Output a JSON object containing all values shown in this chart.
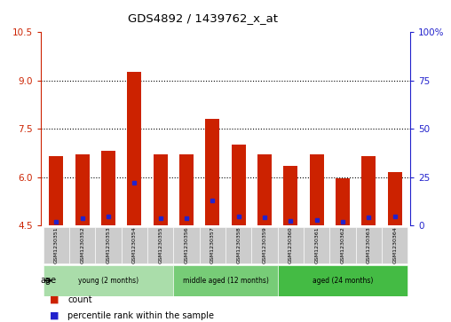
{
  "title": "GDS4892 / 1439762_x_at",
  "samples": [
    "GSM1230351",
    "GSM1230352",
    "GSM1230353",
    "GSM1230354",
    "GSM1230355",
    "GSM1230356",
    "GSM1230357",
    "GSM1230358",
    "GSM1230359",
    "GSM1230360",
    "GSM1230361",
    "GSM1230362",
    "GSM1230363",
    "GSM1230364"
  ],
  "count_values": [
    6.65,
    6.72,
    6.83,
    9.28,
    6.72,
    6.72,
    7.82,
    7.0,
    6.72,
    6.35,
    6.72,
    5.95,
    6.65,
    6.15
  ],
  "percentile_values": [
    2.0,
    3.5,
    4.5,
    22.0,
    3.5,
    3.5,
    13.0,
    4.5,
    4.0,
    2.5,
    3.0,
    2.0,
    4.0,
    4.5
  ],
  "y_min": 4.5,
  "y_max": 10.5,
  "y_ticks": [
    4.5,
    6.0,
    7.5,
    9.0,
    10.5
  ],
  "y2_ticks": [
    0,
    25,
    50,
    75,
    100
  ],
  "y2_tick_labels": [
    "0",
    "25",
    "50",
    "75",
    "100%"
  ],
  "bar_color": "#cc2200",
  "dot_color": "#2222cc",
  "bar_width": 0.55,
  "group_data": [
    {
      "start": 0,
      "end": 4,
      "color": "#aaddaa",
      "label": "young (2 months)"
    },
    {
      "start": 5,
      "end": 8,
      "color": "#77cc77",
      "label": "middle aged (12 months)"
    },
    {
      "start": 9,
      "end": 13,
      "color": "#44bb44",
      "label": "aged (24 months)"
    }
  ],
  "left_axis_color": "#cc2200",
  "right_axis_color": "#2222cc",
  "legend_count_label": "count",
  "legend_percentile_label": "percentile rank within the sample"
}
